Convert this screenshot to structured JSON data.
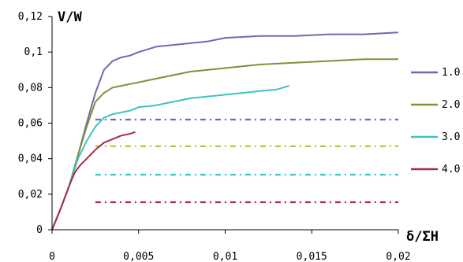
{
  "chart_data": {
    "type": "line",
    "ylabel": "V/W",
    "xlabel": "δ/ΣH",
    "xlim": [
      0,
      0.02
    ],
    "ylim": [
      0,
      0.12
    ],
    "x_ticks": [
      "0",
      "0,005",
      "0,01",
      "0,015",
      "0,02"
    ],
    "y_ticks": [
      "0",
      "0,02",
      "0,04",
      "0,06",
      "0,08",
      "0,1",
      "0,12"
    ],
    "grid": false,
    "legend_position": "right",
    "series": [
      {
        "name": "1.0",
        "color": "#6B6BB2",
        "points": [
          [
            0,
            0
          ],
          [
            0.0005,
            0.012
          ],
          [
            0.001,
            0.025
          ],
          [
            0.0015,
            0.042
          ],
          [
            0.002,
            0.06
          ],
          [
            0.0025,
            0.077
          ],
          [
            0.003,
            0.09
          ],
          [
            0.0035,
            0.095
          ],
          [
            0.004,
            0.097
          ],
          [
            0.0045,
            0.098
          ],
          [
            0.005,
            0.1
          ],
          [
            0.006,
            0.103
          ],
          [
            0.007,
            0.104
          ],
          [
            0.008,
            0.105
          ],
          [
            0.009,
            0.106
          ],
          [
            0.01,
            0.108
          ],
          [
            0.012,
            0.109
          ],
          [
            0.014,
            0.109
          ],
          [
            0.016,
            0.11
          ],
          [
            0.018,
            0.11
          ],
          [
            0.02,
            0.111
          ]
        ]
      },
      {
        "name": "2.0",
        "color": "#8B8B3A",
        "points": [
          [
            0,
            0
          ],
          [
            0.0005,
            0.012
          ],
          [
            0.001,
            0.025
          ],
          [
            0.0015,
            0.042
          ],
          [
            0.002,
            0.058
          ],
          [
            0.0025,
            0.072
          ],
          [
            0.003,
            0.077
          ],
          [
            0.0035,
            0.08
          ],
          [
            0.004,
            0.081
          ],
          [
            0.0045,
            0.082
          ],
          [
            0.005,
            0.083
          ],
          [
            0.006,
            0.085
          ],
          [
            0.007,
            0.087
          ],
          [
            0.008,
            0.089
          ],
          [
            0.009,
            0.09
          ],
          [
            0.01,
            0.091
          ],
          [
            0.012,
            0.093
          ],
          [
            0.014,
            0.094
          ],
          [
            0.016,
            0.095
          ],
          [
            0.018,
            0.096
          ],
          [
            0.02,
            0.096
          ]
        ]
      },
      {
        "name": "3.0",
        "color": "#3DC4C4",
        "points": [
          [
            0,
            0
          ],
          [
            0.0005,
            0.012
          ],
          [
            0.001,
            0.025
          ],
          [
            0.0015,
            0.04
          ],
          [
            0.002,
            0.05
          ],
          [
            0.0025,
            0.058
          ],
          [
            0.003,
            0.063
          ],
          [
            0.0035,
            0.065
          ],
          [
            0.004,
            0.066
          ],
          [
            0.0045,
            0.067
          ],
          [
            0.005,
            0.069
          ],
          [
            0.006,
            0.07
          ],
          [
            0.007,
            0.072
          ],
          [
            0.008,
            0.074
          ],
          [
            0.009,
            0.075
          ],
          [
            0.01,
            0.076
          ],
          [
            0.011,
            0.077
          ],
          [
            0.012,
            0.078
          ],
          [
            0.013,
            0.079
          ],
          [
            0.0137,
            0.081
          ]
        ]
      },
      {
        "name": "4.0",
        "color": "#A6285A",
        "points": [
          [
            0,
            0
          ],
          [
            0.0005,
            0.012
          ],
          [
            0.001,
            0.025
          ],
          [
            0.0013,
            0.032
          ],
          [
            0.0016,
            0.036
          ],
          [
            0.002,
            0.04
          ],
          [
            0.0025,
            0.045
          ],
          [
            0.003,
            0.049
          ],
          [
            0.0035,
            0.051
          ],
          [
            0.004,
            0.053
          ],
          [
            0.0045,
            0.054
          ],
          [
            0.0048,
            0.055
          ]
        ]
      }
    ],
    "reference_lines": [
      {
        "y": 0.062,
        "color": "#6B6BB2"
      },
      {
        "y": 0.047,
        "color": "#A8CE3A"
      },
      {
        "y": 0.031,
        "color": "#3DC4C4"
      },
      {
        "y": 0.0155,
        "color": "#A6285A"
      }
    ]
  }
}
